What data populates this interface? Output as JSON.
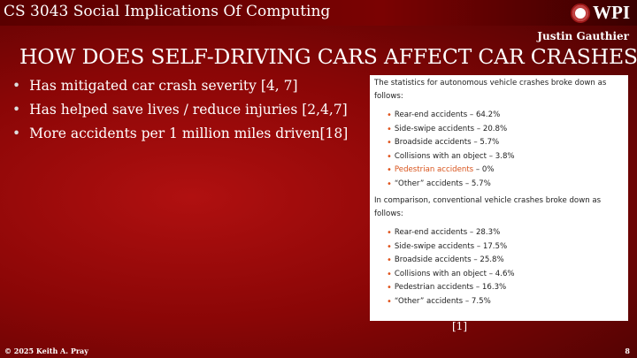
{
  "header": {
    "course": "CS 3043 Social Implications Of Computing",
    "logo_text": "WPI",
    "author": "Justin Gauthier"
  },
  "title": "HOW DOES SELF-DRIVING CARS AFFECT CAR CRASHES",
  "bullets": [
    "Has mitigated car crash severity [4, 7]",
    "Has helped save lives / reduce injuries [2,4,7]",
    "More accidents per 1 million miles driven[18]"
  ],
  "image": {
    "intro_autonomous": "The statistics for autonomous vehicle crashes broke down as follows:",
    "autonomous": [
      "Rear-end accidents – 64.2%",
      "Side-swipe accidents – 20.8%",
      "Broadside accidents – 5.7%",
      "Collisions with an object – 3.8%",
      "Pedestrian accidents",
      "“Other” accidents – 5.7%"
    ],
    "pedestrian_suffix": " – 0%",
    "intro_conventional": "In comparison, conventional vehicle crashes broke down as follows:",
    "conventional": [
      "Rear-end accidents – 28.3%",
      "Side-swipe accidents – 17.5%",
      "Broadside accidents – 25.8%",
      "Collisions with an object – 4.6%",
      "Pedestrian accidents – 16.3%",
      "“Other” accidents – 7.5%"
    ],
    "bullet_color": "#e0531c"
  },
  "citation": "[1]",
  "footer": {
    "copyright": "© 2025 Keith A. Pray",
    "page": "8"
  }
}
